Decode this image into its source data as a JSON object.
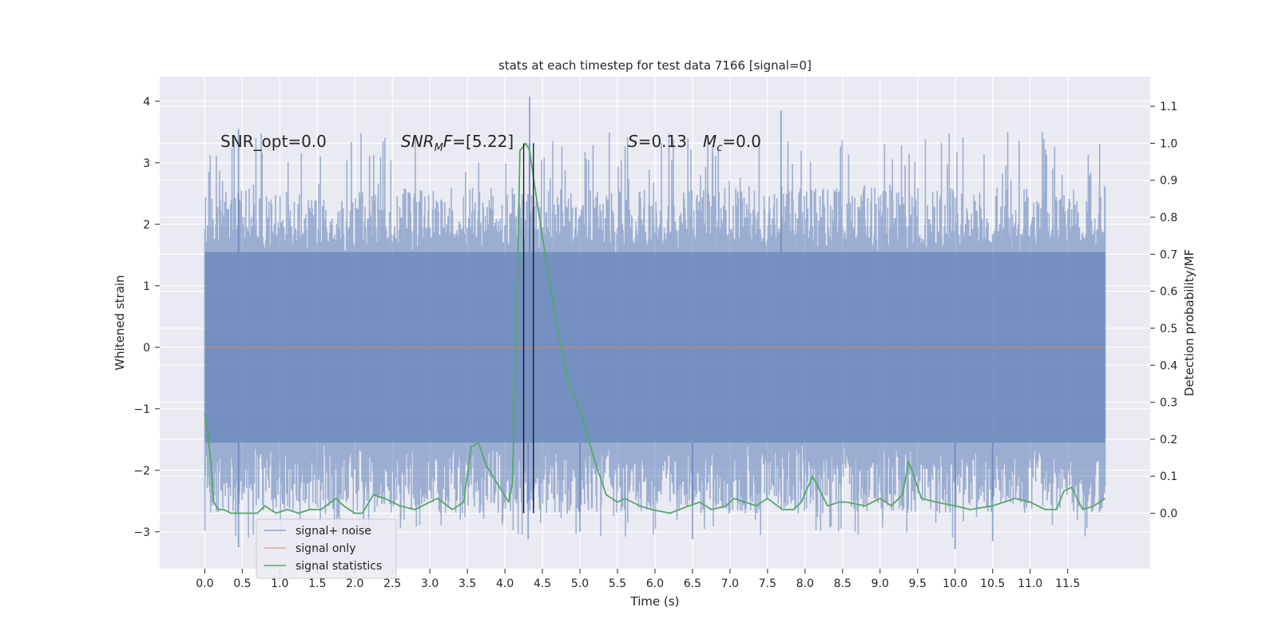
{
  "chart_data": {
    "type": "line",
    "title": "stats at each timestep for test data 7166 [signal=0]",
    "xlabel": "Time (s)",
    "ylabel": "Whitened strain",
    "y2label": "Detection probability/MF",
    "xlim": [
      -0.6,
      12.6
    ],
    "ylim": [
      -3.6,
      4.4
    ],
    "y2lim": [
      -0.15,
      1.18
    ],
    "xticks": [
      0.0,
      0.5,
      1.0,
      1.5,
      2.0,
      2.5,
      3.0,
      3.5,
      4.0,
      4.5,
      5.0,
      5.5,
      6.0,
      6.5,
      7.0,
      7.5,
      8.0,
      8.5,
      9.0,
      9.5,
      10.0,
      10.5,
      11.0,
      11.5
    ],
    "xtick_labels": [
      "0.0",
      "0.5",
      "1.0",
      "1.5",
      "2.0",
      "2.5",
      "3.0",
      "3.5",
      "4.0",
      "4.5",
      "5.0",
      "5.5",
      "6.0",
      "6.5",
      "7.0",
      "7.5",
      "8.0",
      "8.5",
      "9.0",
      "9.5",
      "10.0",
      "10.5",
      "11.0",
      "11.5"
    ],
    "yticks": [
      4,
      3,
      2,
      1,
      0,
      -1,
      -2,
      -3
    ],
    "ytick_labels": [
      "4",
      "3",
      "2",
      "1",
      "0",
      "−1",
      "−2",
      "−3"
    ],
    "y2ticks": [
      1.1,
      1.0,
      0.9,
      0.8,
      0.7,
      0.6,
      0.5,
      0.4,
      0.3,
      0.2,
      0.1,
      0.0
    ],
    "y2tick_labels": [
      "1.1",
      "1.0",
      "0.9",
      "0.8",
      "0.7",
      "0.6",
      "0.5",
      "0.4",
      "0.3",
      "0.2",
      "0.1",
      "0.0"
    ],
    "vlines": [
      4.25,
      4.38
    ],
    "series": [
      {
        "name": "signal+ noise",
        "color": "#4c72b0",
        "kind": "noise",
        "x_range": [
          0.0,
          12.0
        ],
        "envelope_upper": 1.55,
        "envelope_lower": -1.55,
        "typical_max": 2.6,
        "typical_min": -2.7,
        "peaks": [
          {
            "x": 4.33,
            "y": 4.08
          },
          {
            "x": 7.68,
            "y": 3.85
          },
          {
            "x": 0.45,
            "y": 3.55
          },
          {
            "x": 4.31,
            "y": -3.12
          },
          {
            "x": 0.45,
            "y": -3.25
          },
          {
            "x": 10.0,
            "y": -3.28
          },
          {
            "x": 5.0,
            "y": -3.0
          },
          {
            "x": 10.5,
            "y": -3.15
          },
          {
            "x": 6.5,
            "y": -3.12
          }
        ]
      },
      {
        "name": "signal only",
        "color": "#dd8452",
        "kind": "flat",
        "x": [
          0.0,
          12.0
        ],
        "y": [
          0.0,
          0.0
        ]
      },
      {
        "name": "signal statistics",
        "color": "#55a868",
        "axis": "right",
        "x": [
          0.0,
          0.04,
          0.08,
          0.12,
          0.18,
          0.25,
          0.35,
          0.5,
          0.7,
          0.8,
          0.95,
          1.1,
          1.25,
          1.4,
          1.55,
          1.75,
          1.85,
          2.0,
          2.1,
          2.25,
          2.4,
          2.6,
          2.8,
          3.0,
          3.1,
          3.3,
          3.45,
          3.55,
          3.65,
          3.75,
          3.9,
          4.05,
          4.1,
          4.15,
          4.2,
          4.28,
          4.33,
          4.4,
          4.55,
          4.7,
          4.85,
          5.0,
          5.2,
          5.35,
          5.5,
          5.6,
          5.8,
          5.95,
          6.2,
          6.45,
          6.6,
          6.75,
          6.95,
          7.05,
          7.2,
          7.35,
          7.5,
          7.7,
          7.85,
          7.95,
          8.1,
          8.3,
          8.45,
          8.55,
          8.8,
          9.0,
          9.15,
          9.3,
          9.38,
          9.45,
          9.55,
          9.75,
          10.0,
          10.2,
          10.5,
          10.8,
          11.0,
          11.2,
          11.35,
          11.45,
          11.55,
          11.7,
          11.85,
          12.0
        ],
        "y": [
          0.27,
          0.22,
          0.14,
          0.03,
          0.01,
          0.01,
          0.0,
          0.0,
          0.0,
          0.02,
          0.0,
          0.01,
          0.0,
          0.01,
          0.01,
          0.04,
          0.02,
          0.0,
          0.0,
          0.05,
          0.04,
          0.02,
          0.01,
          0.03,
          0.04,
          0.01,
          0.03,
          0.18,
          0.19,
          0.13,
          0.08,
          0.03,
          0.08,
          0.45,
          0.98,
          1.0,
          0.98,
          0.88,
          0.68,
          0.5,
          0.35,
          0.28,
          0.14,
          0.05,
          0.03,
          0.04,
          0.02,
          0.01,
          0.0,
          0.02,
          0.03,
          0.01,
          0.02,
          0.04,
          0.03,
          0.02,
          0.04,
          0.01,
          0.01,
          0.03,
          0.1,
          0.02,
          0.03,
          0.03,
          0.02,
          0.04,
          0.02,
          0.05,
          0.14,
          0.1,
          0.04,
          0.03,
          0.02,
          0.01,
          0.02,
          0.04,
          0.03,
          0.01,
          0.01,
          0.06,
          0.07,
          0.01,
          0.02,
          0.04
        ]
      }
    ],
    "annotations": [
      {
        "id": "snr_opt",
        "text": "SNR_opt=0.0"
      },
      {
        "id": "snr_mf",
        "text_main": "SNR",
        "text_sub": "M",
        "text_rest": "F=[5.22]"
      },
      {
        "id": "s_stat",
        "text_italic": "S",
        "text_rest": "=0.13"
      },
      {
        "id": "mc",
        "text_italic": "M",
        "text_sub": "c",
        "text_rest": "=0.0"
      }
    ],
    "legend_position": "lower-left",
    "grid": true,
    "background_color": "#eaeaf2",
    "grid_color": "#ffffff"
  }
}
